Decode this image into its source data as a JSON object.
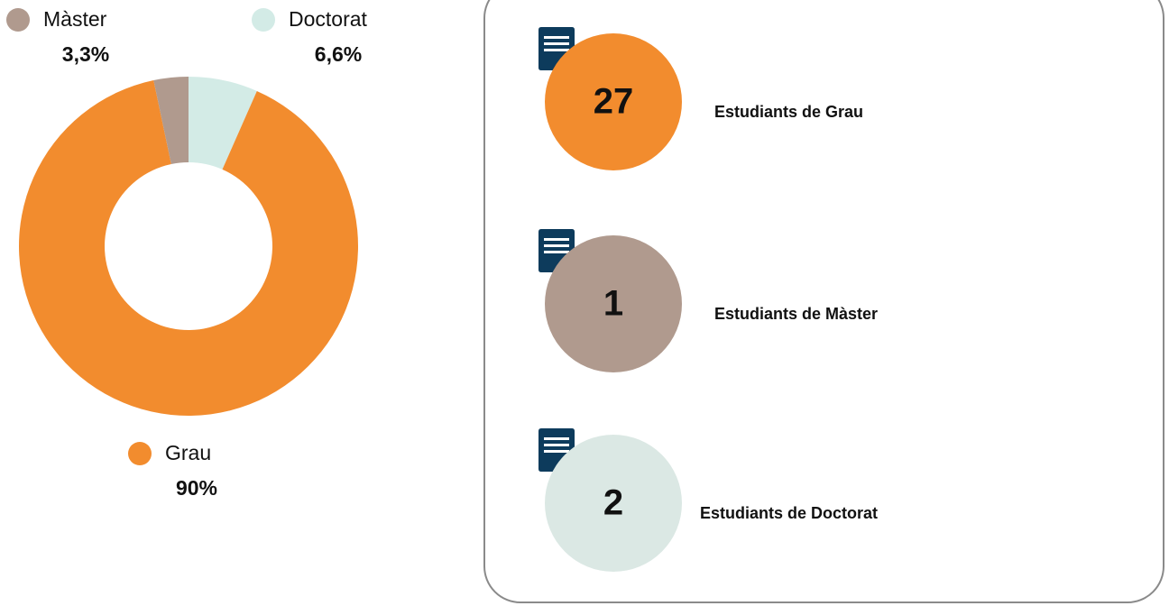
{
  "chart_data": {
    "type": "pie",
    "categories": [
      "Doctorat",
      "Grau",
      "Màster"
    ],
    "values": [
      6.6,
      90,
      3.3
    ],
    "value_labels": [
      "6,6%",
      "90%",
      "3,3%"
    ],
    "colors": [
      "#d3ebe6",
      "#f28c2e",
      "#b09a8e"
    ],
    "donut": true
  },
  "cards": [
    {
      "count": "27",
      "label": "Estudiants de Grau",
      "color": "#f28c2e"
    },
    {
      "count": "1",
      "label": "Estudiants de Màster",
      "color": "#b09a8e"
    },
    {
      "count": "2",
      "label": "Estudiants de Doctorat",
      "color": "#dbe8e4"
    }
  ]
}
